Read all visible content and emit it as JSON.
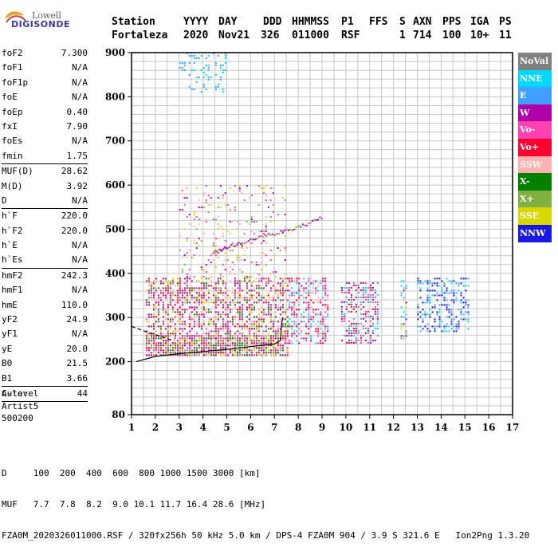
{
  "logo": {
    "line1": "Lowell",
    "line2": "DIGISONDE"
  },
  "header": {
    "labels": [
      "Station",
      "YYYY",
      "DAY",
      "DDD",
      "HHMMSS",
      "P1",
      "FFS",
      "S",
      "AXN",
      "PPS",
      "IGA",
      "PS"
    ],
    "values": [
      "Fortaleza",
      "2020",
      "Nov21",
      "326",
      "011000",
      "RSF",
      "1",
      "714",
      "100",
      "10+",
      "11"
    ]
  },
  "params": [
    {
      "label": "foF2",
      "value": "7.300"
    },
    {
      "label": "foF1",
      "value": "N/A"
    },
    {
      "label": "foF1p",
      "value": "N/A"
    },
    {
      "label": "foE",
      "value": "N/A"
    },
    {
      "label": "foEp",
      "value": "0.40"
    },
    {
      "label": "fxI",
      "value": "7.90"
    },
    {
      "label": "foEs",
      "value": "N/A"
    },
    {
      "label": "fmin",
      "value": "1.75"
    },
    {
      "sep": true
    },
    {
      "label": "MUF(D)",
      "value": "28.62"
    },
    {
      "label": "M(D)",
      "value": "3.92"
    },
    {
      "label": "D",
      "value": "N/A"
    },
    {
      "sep": true
    },
    {
      "label": "h`F",
      "value": "220.0"
    },
    {
      "label": "h`F2",
      "value": "220.0"
    },
    {
      "label": "h`E",
      "value": "N/A"
    },
    {
      "label": "h`Es",
      "value": "N/A"
    },
    {
      "sep": true
    },
    {
      "label": "hmF2",
      "value": "242.3"
    },
    {
      "label": "hmF1",
      "value": "N/A"
    },
    {
      "label": "hmE",
      "value": "110.0"
    },
    {
      "label": "yF2",
      "value": "24.9"
    },
    {
      "label": "yF1",
      "value": "N/A"
    },
    {
      "label": "yE",
      "value": "20.0"
    },
    {
      "label": "B0",
      "value": "21.5"
    },
    {
      "label": "B1",
      "value": "3.66"
    },
    {
      "sep": true
    },
    {
      "label": "C-level",
      "value": "44"
    },
    {
      "sep": true
    }
  ],
  "auto": {
    "line1": "Auto:",
    "line2": "Artist5",
    "line3": "500200"
  },
  "bottom": {
    "d_line": "D     100  200  400  600  800 1000 1500 3000 [km]",
    "muf_line": "MUF   7.7  7.8  8.2  9.0 10.1 11.7 16.4 28.6 [MHz]",
    "file_line": "FZA0M_2020326011000.RSF / 320fx256h 50 kHz 5.0 km / DPS-4 FZA0M 904 / 3.9 S 321.6 E   Ion2Png 1.3.20"
  },
  "legend": [
    {
      "label": "NoVal",
      "color": "#808080"
    },
    {
      "label": "NNE",
      "color": "#00d8ff"
    },
    {
      "label": "E",
      "color": "#40a0ff"
    },
    {
      "label": "W",
      "color": "#b000a8"
    },
    {
      "label": "Vo-",
      "color": "#ff40b0"
    },
    {
      "label": "Vo+",
      "color": "#ff0030"
    },
    {
      "label": "SSW",
      "color": "#ffb0b0"
    },
    {
      "label": "X-",
      "color": "#008000"
    },
    {
      "label": "X+",
      "color": "#80b040"
    },
    {
      "label": "SSE",
      "color": "#d8d800"
    },
    {
      "label": "NNW",
      "color": "#1818e0"
    }
  ],
  "chart_data": {
    "type": "scatter",
    "x_ticks": [
      "1",
      "2",
      "3",
      "4",
      "5",
      "6",
      "7",
      "8",
      "9",
      "10",
      "11",
      "12",
      "13",
      "14",
      "15",
      "16",
      "17"
    ],
    "y_ticks": [
      "80",
      "200",
      "300",
      "400",
      "500",
      "600",
      "700",
      "800",
      "900"
    ],
    "xlim": [
      1,
      17
    ],
    "ylim": [
      80,
      900
    ],
    "grid": true,
    "trace_solid": [
      [
        1.2,
        200
      ],
      [
        2,
        212
      ],
      [
        3,
        218
      ],
      [
        4,
        223
      ],
      [
        5,
        228
      ],
      [
        6,
        234
      ],
      [
        7,
        240
      ],
      [
        7.25,
        248
      ],
      [
        7.3,
        285
      ],
      [
        7.35,
        300
      ]
    ],
    "trace_dashed": [
      [
        1.0,
        280
      ],
      [
        1.6,
        268
      ],
      [
        2.2,
        258
      ],
      [
        2.5,
        252
      ],
      [
        2.8,
        247
      ]
    ],
    "clusters": [
      {
        "x": [
          1.6,
          7.6
        ],
        "y": [
          215,
          390
        ],
        "density": 0.55,
        "colors": [
          "W",
          "Vo+",
          "Vo-",
          "SSW",
          "W",
          "Vo+",
          "X-",
          "SSE"
        ]
      },
      {
        "x": [
          1.6,
          7.3
        ],
        "y": [
          215,
          260
        ],
        "density": 0.7,
        "colors": [
          "Vo+",
          "W",
          "SSE",
          "X-",
          "X+",
          "Vo-"
        ]
      },
      {
        "x": [
          3.0,
          7.5
        ],
        "y": [
          390,
          600
        ],
        "density": 0.12,
        "colors": [
          "W",
          "Vo-",
          "SSW",
          "X+",
          "SSE"
        ]
      },
      {
        "x": [
          7.6,
          9.3
        ],
        "y": [
          240,
          390
        ],
        "density": 0.45,
        "colors": [
          "W",
          "Vo+",
          "Vo-",
          "SSW",
          "NNE"
        ]
      },
      {
        "x": [
          9.8,
          11.4
        ],
        "y": [
          240,
          380
        ],
        "density": 0.45,
        "colors": [
          "W",
          "Vo+",
          "Vo-",
          "NNE",
          "E"
        ]
      },
      {
        "x": [
          12.3,
          12.6
        ],
        "y": [
          250,
          390
        ],
        "density": 0.4,
        "colors": [
          "W",
          "NNE",
          "SSE",
          "E"
        ]
      },
      {
        "x": [
          13.0,
          15.2
        ],
        "y": [
          270,
          390
        ],
        "density": 0.45,
        "colors": [
          "NNW",
          "E",
          "NNE",
          "NNW"
        ]
      },
      {
        "x": [
          3.0,
          5.0
        ],
        "y": [
          810,
          900
        ],
        "density": 0.18,
        "colors": [
          "E",
          "NNE"
        ]
      }
    ],
    "o_trace": [
      [
        4.4,
        450
      ],
      [
        5,
        460
      ],
      [
        6,
        478
      ],
      [
        7,
        492
      ],
      [
        8,
        506
      ],
      [
        9,
        530
      ]
    ]
  }
}
